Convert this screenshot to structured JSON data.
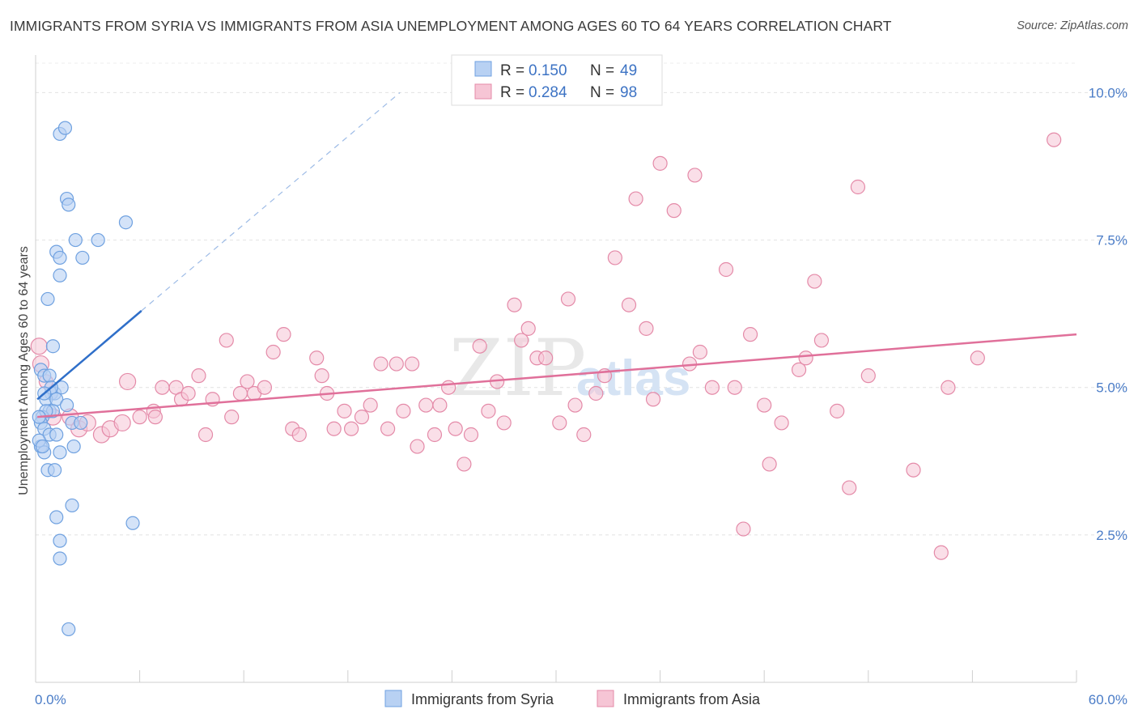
{
  "chart_data": {
    "type": "scatter",
    "title": "IMMIGRANTS FROM SYRIA VS IMMIGRANTS FROM ASIA UNEMPLOYMENT AMONG AGES 60 TO 64 YEARS CORRELATION CHART",
    "source": "Source: ZipAtlas.com",
    "ylabel": "Unemployment Among Ages 60 to 64 years",
    "xlabel": "",
    "xlim": [
      0,
      60
    ],
    "ylim": [
      0,
      10.5
    ],
    "x_tick_labels": [
      "0.0%",
      "60.0%"
    ],
    "y_ticks": [
      2.5,
      5.0,
      7.5,
      10.0
    ],
    "y_tick_labels": [
      "2.5%",
      "5.0%",
      "7.5%",
      "10.0%"
    ],
    "watermark": "ZIPatlas",
    "legend": [
      {
        "r_label": "R =",
        "r_value": "0.150",
        "n_label": "N =",
        "n_value": "49"
      },
      {
        "r_label": "R =",
        "r_value": "0.284",
        "n_label": "N =",
        "n_value": "98"
      }
    ],
    "series": [
      {
        "name": "Immigrants from Syria",
        "color": "#6fa1e0",
        "fill": "#b8d1f3",
        "trend_color": "#2f6fc9",
        "trend": {
          "x0": 0.1,
          "y0": 4.8,
          "x1": 6.1,
          "y1": 6.3,
          "dash_x1": 21.0,
          "dash_y1": 10.0
        },
        "points": [
          [
            1.4,
            9.3
          ],
          [
            1.7,
            9.4
          ],
          [
            1.8,
            8.2
          ],
          [
            1.9,
            8.1
          ],
          [
            2.3,
            7.5
          ],
          [
            3.6,
            7.5
          ],
          [
            5.2,
            7.8
          ],
          [
            1.2,
            7.3
          ],
          [
            1.4,
            7.2
          ],
          [
            2.7,
            7.2
          ],
          [
            1.4,
            6.9
          ],
          [
            0.7,
            6.5
          ],
          [
            1.0,
            5.7
          ],
          [
            0.3,
            5.3
          ],
          [
            0.5,
            5.2
          ],
          [
            0.8,
            5.2
          ],
          [
            0.9,
            4.9
          ],
          [
            1.1,
            4.9
          ],
          [
            1.5,
            5.0
          ],
          [
            0.6,
            4.8
          ],
          [
            1.2,
            4.8
          ],
          [
            1.8,
            4.7
          ],
          [
            0.8,
            4.6
          ],
          [
            1.0,
            4.6
          ],
          [
            0.4,
            4.5
          ],
          [
            2.1,
            4.4
          ],
          [
            2.6,
            4.4
          ],
          [
            0.3,
            4.4
          ],
          [
            0.5,
            4.3
          ],
          [
            0.8,
            4.2
          ],
          [
            1.2,
            4.2
          ],
          [
            0.3,
            4.0
          ],
          [
            0.5,
            3.9
          ],
          [
            1.4,
            3.9
          ],
          [
            2.2,
            4.0
          ],
          [
            0.7,
            3.6
          ],
          [
            1.1,
            3.6
          ],
          [
            2.1,
            3.0
          ],
          [
            5.6,
            2.7
          ],
          [
            1.2,
            2.8
          ],
          [
            1.4,
            2.4
          ],
          [
            1.4,
            2.1
          ],
          [
            1.9,
            0.9
          ],
          [
            0.2,
            4.1
          ],
          [
            0.4,
            4.0
          ],
          [
            0.9,
            5.0
          ],
          [
            0.6,
            4.6
          ],
          [
            0.2,
            4.5
          ],
          [
            0.5,
            4.9
          ]
        ]
      },
      {
        "name": "Immigrants from Asia",
        "color": "#e48aa8",
        "fill": "#f6c5d5",
        "trend_color": "#e0709a",
        "trend": {
          "x0": 0.1,
          "y0": 4.5,
          "x1": 60.0,
          "y1": 5.9
        },
        "points": [
          [
            0.2,
            5.7
          ],
          [
            0.3,
            5.4
          ],
          [
            1.0,
            4.5
          ],
          [
            2.0,
            4.5
          ],
          [
            2.5,
            4.3
          ],
          [
            3.0,
            4.4
          ],
          [
            3.8,
            4.2
          ],
          [
            4.3,
            4.3
          ],
          [
            5.0,
            4.4
          ],
          [
            5.3,
            5.1
          ],
          [
            6.0,
            4.5
          ],
          [
            6.8,
            4.6
          ],
          [
            6.9,
            4.5
          ],
          [
            7.3,
            5.0
          ],
          [
            8.1,
            5.0
          ],
          [
            8.4,
            4.8
          ],
          [
            8.8,
            4.9
          ],
          [
            9.4,
            5.2
          ],
          [
            9.8,
            4.2
          ],
          [
            10.2,
            4.8
          ],
          [
            11.0,
            5.8
          ],
          [
            11.3,
            4.5
          ],
          [
            11.8,
            4.9
          ],
          [
            12.2,
            5.1
          ],
          [
            12.6,
            4.9
          ],
          [
            13.2,
            5.0
          ],
          [
            13.7,
            5.6
          ],
          [
            14.3,
            5.9
          ],
          [
            14.8,
            4.3
          ],
          [
            15.2,
            4.2
          ],
          [
            16.2,
            5.5
          ],
          [
            16.5,
            5.2
          ],
          [
            16.8,
            4.9
          ],
          [
            17.2,
            4.3
          ],
          [
            17.8,
            4.6
          ],
          [
            18.2,
            4.3
          ],
          [
            18.8,
            4.5
          ],
          [
            19.3,
            4.7
          ],
          [
            19.9,
            5.4
          ],
          [
            20.3,
            4.3
          ],
          [
            20.8,
            5.4
          ],
          [
            21.2,
            4.6
          ],
          [
            21.7,
            5.4
          ],
          [
            22.0,
            4.0
          ],
          [
            22.5,
            4.7
          ],
          [
            23.0,
            4.2
          ],
          [
            23.3,
            4.7
          ],
          [
            23.8,
            5.0
          ],
          [
            24.2,
            4.3
          ],
          [
            24.7,
            3.7
          ],
          [
            25.1,
            4.2
          ],
          [
            25.6,
            5.7
          ],
          [
            26.1,
            4.6
          ],
          [
            26.6,
            5.1
          ],
          [
            27.0,
            4.4
          ],
          [
            27.6,
            6.4
          ],
          [
            28.0,
            5.8
          ],
          [
            28.4,
            6.0
          ],
          [
            28.9,
            5.5
          ],
          [
            29.4,
            5.5
          ],
          [
            30.2,
            4.4
          ],
          [
            30.7,
            6.5
          ],
          [
            31.1,
            4.7
          ],
          [
            31.6,
            4.2
          ],
          [
            32.3,
            4.9
          ],
          [
            32.8,
            5.2
          ],
          [
            33.4,
            7.2
          ],
          [
            34.2,
            6.4
          ],
          [
            34.6,
            8.2
          ],
          [
            35.2,
            6.0
          ],
          [
            35.6,
            4.8
          ],
          [
            36.0,
            8.8
          ],
          [
            36.8,
            8.0
          ],
          [
            37.7,
            5.4
          ],
          [
            38.0,
            8.6
          ],
          [
            38.3,
            5.6
          ],
          [
            39.0,
            5.0
          ],
          [
            39.8,
            7.0
          ],
          [
            40.3,
            5.0
          ],
          [
            40.8,
            2.6
          ],
          [
            41.2,
            5.9
          ],
          [
            42.0,
            4.7
          ],
          [
            42.3,
            3.7
          ],
          [
            43.0,
            4.4
          ],
          [
            44.0,
            5.3
          ],
          [
            44.4,
            5.5
          ],
          [
            44.9,
            6.8
          ],
          [
            45.3,
            5.8
          ],
          [
            46.2,
            4.6
          ],
          [
            46.9,
            3.3
          ],
          [
            47.4,
            8.4
          ],
          [
            48.0,
            5.2
          ],
          [
            50.6,
            3.6
          ],
          [
            52.2,
            2.2
          ],
          [
            52.6,
            5.0
          ],
          [
            54.3,
            5.5
          ],
          [
            58.7,
            9.2
          ],
          [
            0.6,
            5.1
          ]
        ]
      }
    ]
  }
}
